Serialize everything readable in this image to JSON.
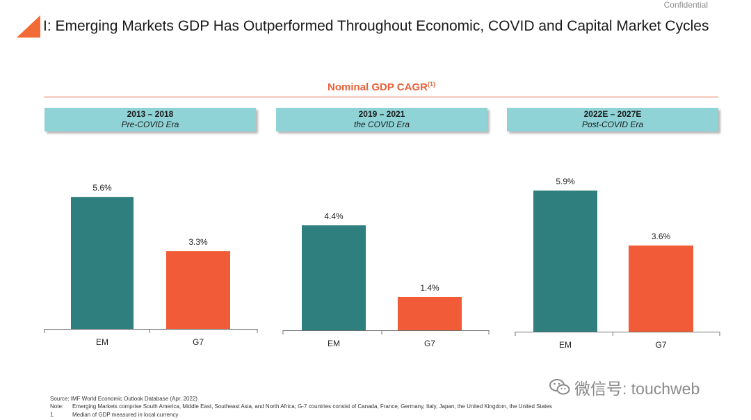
{
  "header": {
    "confidential": "Confidential",
    "title": "I: Emerging Markets GDP Has Outperformed Throughout Economic, COVID and Capital Market Cycles",
    "accent_color": "#f26a35"
  },
  "section": {
    "title": "Nominal GDP CAGR",
    "footnote_ref": "(1)"
  },
  "chart_data": [
    {
      "type": "bar",
      "title": "2013 – 2018",
      "subtitle": "Pre-COVID Era",
      "categories": [
        "EM",
        "G7"
      ],
      "values": [
        5.6,
        3.3
      ],
      "labels": [
        "5.6%",
        "3.3%"
      ],
      "colors": [
        "#2f7f7e",
        "#f15b37"
      ],
      "ylim": [
        0,
        7.5
      ],
      "grid": false
    },
    {
      "type": "bar",
      "title": "2019 – 2021",
      "subtitle": "the COVID Era",
      "categories": [
        "EM",
        "G7"
      ],
      "values": [
        4.4,
        1.4
      ],
      "labels": [
        "4.4%",
        "1.4%"
      ],
      "colors": [
        "#2f7f7e",
        "#f15b37"
      ],
      "ylim": [
        0,
        7.5
      ],
      "grid": false
    },
    {
      "type": "bar",
      "title": "2022E – 2027E",
      "subtitle": "Post-COVID Era",
      "categories": [
        "EM",
        "G7"
      ],
      "values": [
        5.9,
        3.6
      ],
      "labels": [
        "5.9%",
        "3.6%"
      ],
      "colors": [
        "#2f7f7e",
        "#f15b37"
      ],
      "ylim": [
        0,
        7.5
      ],
      "grid": false
    }
  ],
  "footer": {
    "source": "Source: IMF World Economic Outlook Database (Apr. 2022)",
    "note_label": "Note:",
    "note": "Emerging Markets comprise South America, Middle East, Southeast Asia, and North Africa; G-7 countries consist of Canada, France, Germany, Italy, Japan, the United Kingdom, the United States",
    "fn_label": "1.",
    "fn": "Median of GDP measured in local currency"
  },
  "watermark": {
    "text": "微信号: touchweb",
    "icon": "wechat-icon"
  }
}
